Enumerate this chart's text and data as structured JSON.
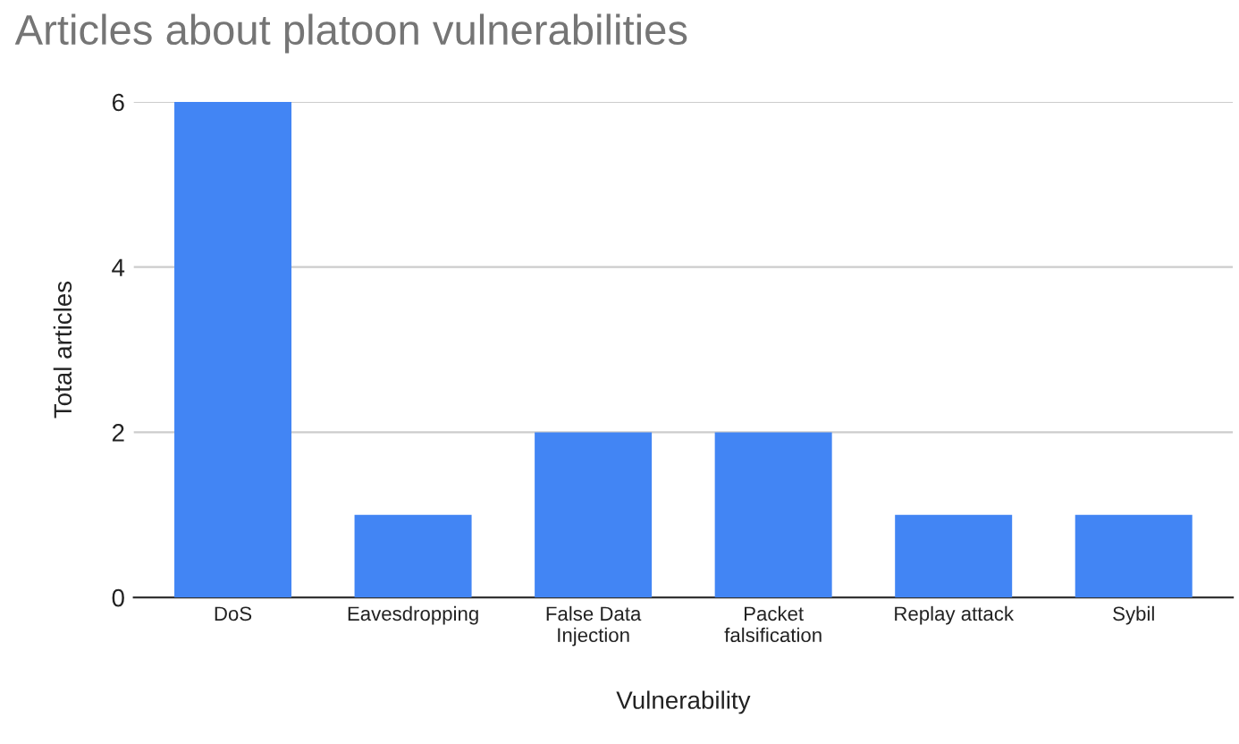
{
  "chart_data": {
    "type": "bar",
    "title": "Articles about platoon vulnerabilities",
    "xlabel": "Vulnerability",
    "ylabel": "Total articles",
    "categories": [
      "DoS",
      "Eavesdropping",
      "False Data\nInjection",
      "Packet\nfalsification",
      "Replay attack",
      "Sybil"
    ],
    "values": [
      6,
      1,
      2,
      2,
      1,
      1
    ],
    "color": "#4285f4",
    "ylim": [
      0,
      6
    ],
    "yticks": [
      0,
      2,
      4,
      6
    ],
    "grid": "y"
  }
}
